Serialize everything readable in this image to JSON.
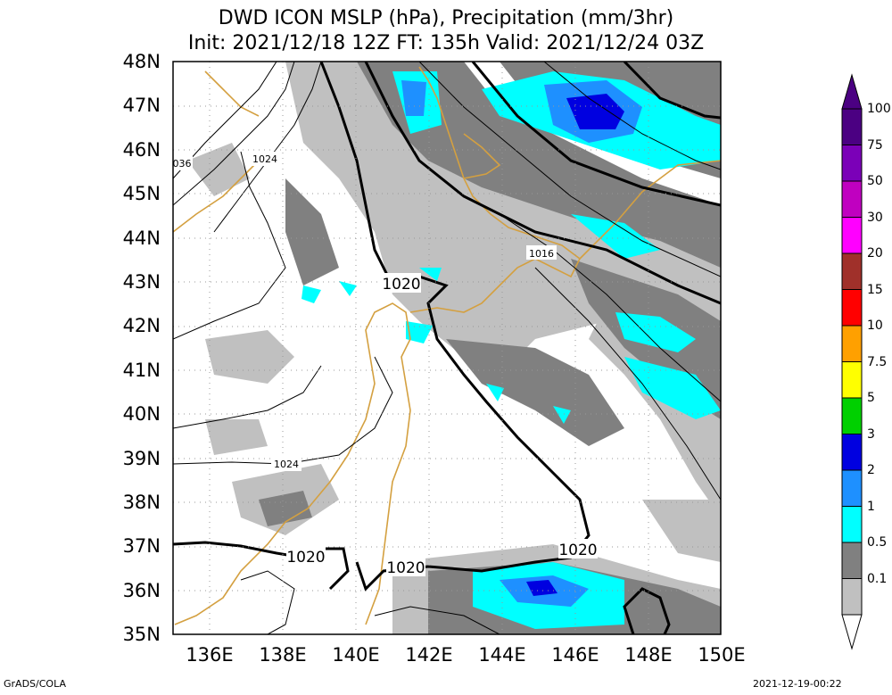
{
  "title_line1": "DWD ICON MSLP (hPa), Precipitation (mm/3hr)",
  "title_line2": "Init: 2021/12/18 12Z  FT: 135h  Valid: 2021/12/24 03Z",
  "lat_labels": [
    "48N",
    "47N",
    "46N",
    "45N",
    "44N",
    "43N",
    "42N",
    "41N",
    "40N",
    "39N",
    "38N",
    "37N",
    "36N",
    "35N"
  ],
  "lon_labels": [
    "136E",
    "138E",
    "140E",
    "142E",
    "144E",
    "146E",
    "148E",
    "150E"
  ],
  "contour_labels": [
    "1020",
    "1020",
    "1020",
    "1020",
    "1016",
    "1024",
    "1024",
    "036"
  ],
  "colorbar": {
    "labels": [
      "100",
      "75",
      "50",
      "30",
      "20",
      "15",
      "10",
      "7.5",
      "5",
      "3",
      "2",
      "1",
      "0.5",
      "0.1"
    ],
    "colors": [
      "#4b0082",
      "#7b00b8",
      "#c000c0",
      "#ff00ff",
      "#a0302a",
      "#ff0000",
      "#ffa000",
      "#ffff00",
      "#00d000",
      "#0000e0",
      "#1e90ff",
      "#00ffff",
      "#808080",
      "#c0c0c0"
    ]
  },
  "footer_left": "GrADS/COLA",
  "footer_right": "2021-12-19-00:22"
}
